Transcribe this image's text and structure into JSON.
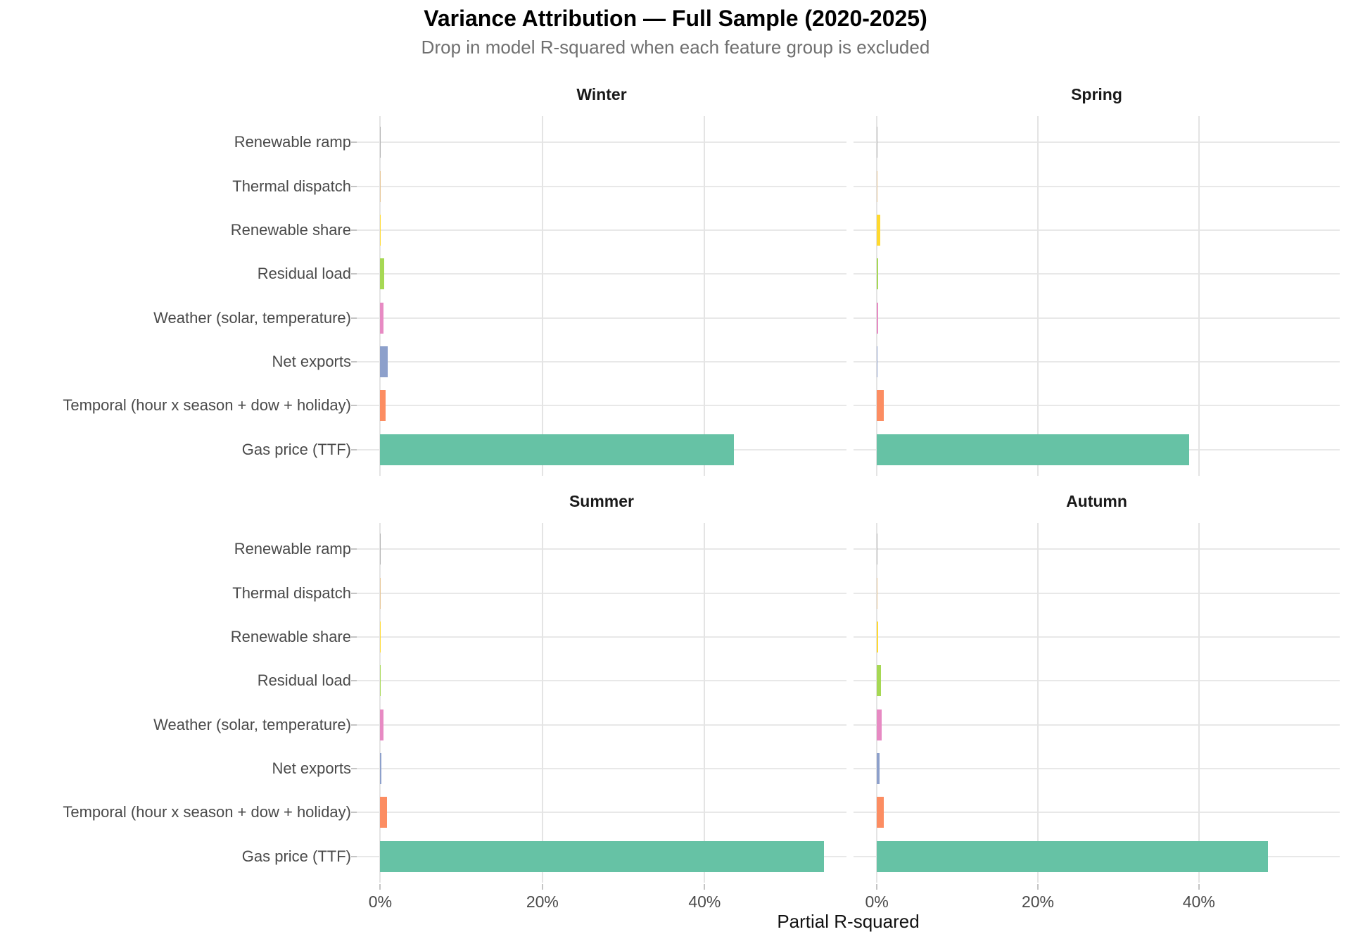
{
  "header": {
    "title": "Variance Attribution — Full Sample (2020-2025)",
    "subtitle": "Drop in model R-squared when each feature group is excluded"
  },
  "axis": {
    "x_title": "Partial R-squared",
    "xtick_labels": [
      "0%",
      "20%",
      "40%"
    ]
  },
  "chart_data": {
    "type": "bar",
    "orientation": "horizontal",
    "title": "Variance Attribution — Full Sample (2020-2025)",
    "subtitle": "Drop in model R-squared when each feature group is excluded",
    "xlabel": "Partial R-squared",
    "x_unit": "percent (partial R-squared, drop when feature group excluded)",
    "xlim": [
      -2.9,
      57.5
    ],
    "xticks": [
      0,
      20,
      40
    ],
    "xtick_labels": [
      "0%",
      "20%",
      "40%"
    ],
    "grid": "major-gridlines-only",
    "legend": "none",
    "categories_top_to_bottom": [
      "Renewable ramp",
      "Thermal dispatch",
      "Renewable share",
      "Residual load",
      "Weather (solar, temperature)",
      "Net exports",
      "Temporal (hour x season + dow + holiday)",
      "Gas price (TTF)"
    ],
    "category_colors": [
      "#B3B3B3",
      "#E5C494",
      "#FFD92F",
      "#A6D854",
      "#E78AC3",
      "#8DA0CB",
      "#FC8D62",
      "#66C2A5"
    ],
    "facets": [
      {
        "name": "Winter",
        "values": [
          0.02,
          0.03,
          0.05,
          0.49,
          0.41,
          0.9,
          0.67,
          43.6
        ]
      },
      {
        "name": "Spring",
        "values": [
          0.02,
          0.04,
          0.41,
          0.12,
          0.12,
          0.05,
          0.83,
          38.8
        ]
      },
      {
        "name": "Summer",
        "values": [
          0.02,
          0.03,
          0.05,
          0.04,
          0.44,
          0.12,
          0.85,
          54.7
        ]
      },
      {
        "name": "Autumn",
        "values": [
          0.03,
          0.08,
          0.13,
          0.55,
          0.64,
          0.3,
          0.85,
          48.6
        ]
      }
    ]
  },
  "colors": {
    "background": "#FFFFFF",
    "gridline_x": "#E4E4E4",
    "gridline_y": "#E8E8E8",
    "tick": "#C4C4C4",
    "axis_text": "#4A4A4A",
    "subtitle_text": "#707070",
    "strip_text": "#1A1A1A",
    "title_text": "#000000"
  }
}
